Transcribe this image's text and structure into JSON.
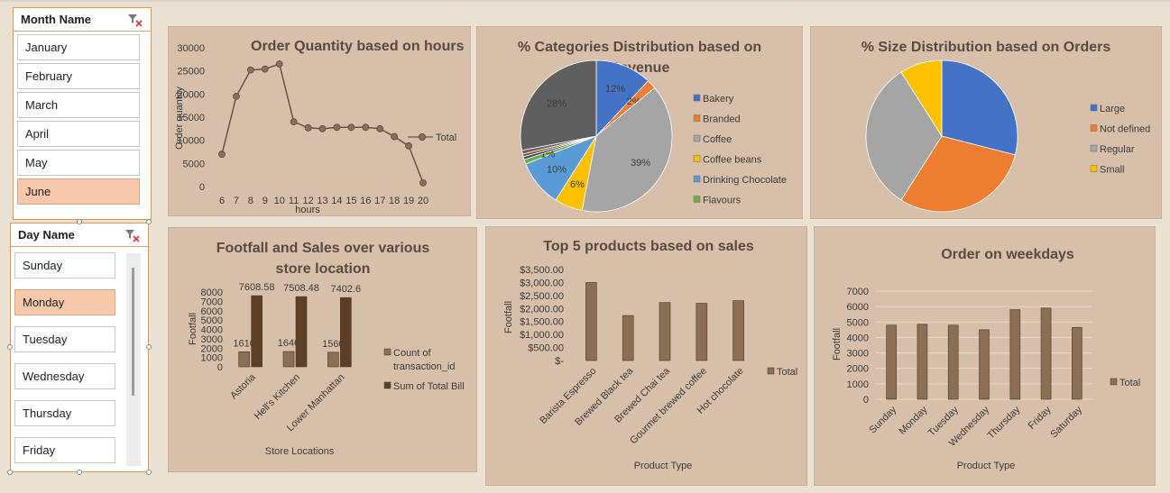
{
  "slicers": {
    "month": {
      "title": "Month Name",
      "items": [
        "January",
        "February",
        "March",
        "April",
        "May",
        "June"
      ],
      "selected": "June"
    },
    "day": {
      "title": "Day Name",
      "items": [
        "Sunday",
        "Monday",
        "Tuesday",
        "Wednesday",
        "Thursday",
        "Friday"
      ],
      "selected": "Monday"
    }
  },
  "colors": {
    "panel": "#d7bfaa",
    "bar": "#8b6e54",
    "bar_dark": "#5c3f24",
    "line": "#6b5346",
    "accent": "#e59550"
  },
  "chart_data": [
    {
      "id": "hours",
      "type": "line",
      "title": "Order Quantity based on hours",
      "xlabel": "hours",
      "ylabel": "Order quantity",
      "x": [
        6,
        7,
        8,
        9,
        10,
        11,
        12,
        13,
        14,
        15,
        16,
        17,
        18,
        19,
        20
      ],
      "series": [
        {
          "name": "Total",
          "values": [
            7000,
            19500,
            25200,
            25400,
            26500,
            14000,
            12700,
            12500,
            12800,
            12800,
            12800,
            12500,
            10800,
            8800,
            800
          ]
        }
      ],
      "yticks": [
        0,
        5000,
        10000,
        15000,
        20000,
        25000,
        30000
      ],
      "ylim": [
        0,
        30000
      ]
    },
    {
      "id": "categories",
      "type": "pie",
      "title": "% Categories Distribution based on Revenue",
      "slices": [
        {
          "name": "Bakery",
          "value": 12,
          "label": "12%",
          "color": "#4472c4"
        },
        {
          "name": "Branded",
          "value": 2,
          "label": "2%",
          "color": "#ed7d31"
        },
        {
          "name": "Coffee",
          "value": 39,
          "label": "39%",
          "color": "#a5a5a5"
        },
        {
          "name": "Coffee beans",
          "value": 6,
          "label": "6%",
          "color": "#ffc000"
        },
        {
          "name": "Drinking Chocolate",
          "value": 10,
          "label": "10%",
          "color": "#5b9bd5"
        },
        {
          "name": "Flavours",
          "value": 1,
          "label": "1%",
          "color": "#70ad47"
        },
        {
          "name": "",
          "value": 0.6,
          "label": "",
          "color": "#264478"
        },
        {
          "name": "",
          "value": 0.6,
          "label": "",
          "color": "#9e480e"
        },
        {
          "name": "",
          "value": 0.8,
          "label": "",
          "color": "#636363"
        },
        {
          "name": "",
          "value": 28,
          "label": "28%",
          "color": "#5f5f5f"
        }
      ],
      "legend": [
        "Bakery",
        "Branded",
        "Coffee",
        "Coffee beans",
        "Drinking Chocolate",
        "Flavours"
      ],
      "legend_colors": [
        "#4472c4",
        "#ed7d31",
        "#a5a5a5",
        "#ffc000",
        "#5b9bd5",
        "#70ad47"
      ]
    },
    {
      "id": "sizes",
      "type": "pie",
      "title": "% Size Distribution based on Orders",
      "slices": [
        {
          "name": "Large",
          "value": 29,
          "label": "",
          "color": "#4472c4"
        },
        {
          "name": "Not defined",
          "value": 30,
          "label": "",
          "color": "#ed7d31"
        },
        {
          "name": "Regular",
          "value": 32,
          "label": "",
          "color": "#a5a5a5"
        },
        {
          "name": "Small",
          "value": 9,
          "label": "",
          "color": "#ffc000"
        }
      ],
      "legend": [
        "Large",
        "Not defined",
        "Regular",
        "Small"
      ],
      "legend_colors": [
        "#4472c4",
        "#ed7d31",
        "#a5a5a5",
        "#ffc000"
      ]
    },
    {
      "id": "footfall",
      "type": "bar",
      "title_lines": [
        "Footfall and Sales over various",
        "store location"
      ],
      "xlabel": "Store Locations",
      "ylabel": "Footfall",
      "categories": [
        "Astoria",
        "Hell's Kitchen",
        "Lower Manhattan"
      ],
      "series": [
        {
          "name": "Count of transaction_id",
          "values": [
            1610,
            1640,
            1560
          ],
          "labels": [
            "1610",
            "1640",
            "1560"
          ],
          "color": "#8b6e54"
        },
        {
          "name": "Sum of Total Bill",
          "values": [
            7608.58,
            7508.48,
            7402.6
          ],
          "labels": [
            "7608.58",
            "7508.48",
            "7402.6"
          ],
          "color": "#5c3f24"
        }
      ],
      "legend": [
        "Count of",
        "transaction_id",
        "Sum of Total Bill"
      ],
      "yticks": [
        0,
        1000,
        2000,
        3000,
        4000,
        5000,
        6000,
        7000,
        8000
      ],
      "ylim": [
        0,
        8000
      ]
    },
    {
      "id": "top5",
      "type": "bar",
      "title": "Top 5 products based on sales",
      "xlabel": "Product Type",
      "ylabel": "Footfall",
      "categories": [
        "Barista Espresso",
        "Brewed Black tea",
        "Brewed Chai tea",
        "Gourmet brewed coffee",
        "Hot chocolate"
      ],
      "series": [
        {
          "name": "Total",
          "values": [
            3000,
            1730,
            2230,
            2200,
            2300
          ]
        }
      ],
      "yticks": [
        "$-",
        "$500.00",
        "$1,000.00",
        "$1,500.00",
        "$2,000.00",
        "$2,500.00",
        "$3,000.00",
        "$3,500.00"
      ],
      "ylim": [
        0,
        3500
      ]
    },
    {
      "id": "weekdays",
      "type": "bar",
      "title": "Order on weekdays",
      "xlabel": "Product Type",
      "ylabel": "Footfall",
      "categories": [
        "Sunday",
        "Monday",
        "Tuesday",
        "Wednesday",
        "Thursday",
        "Friday",
        "Saturday"
      ],
      "series": [
        {
          "name": "Total",
          "values": [
            4800,
            4850,
            4800,
            4500,
            5800,
            5900,
            4650
          ]
        }
      ],
      "yticks": [
        0,
        1000,
        2000,
        3000,
        4000,
        5000,
        6000,
        7000
      ],
      "ylim": [
        0,
        7000
      ]
    }
  ]
}
